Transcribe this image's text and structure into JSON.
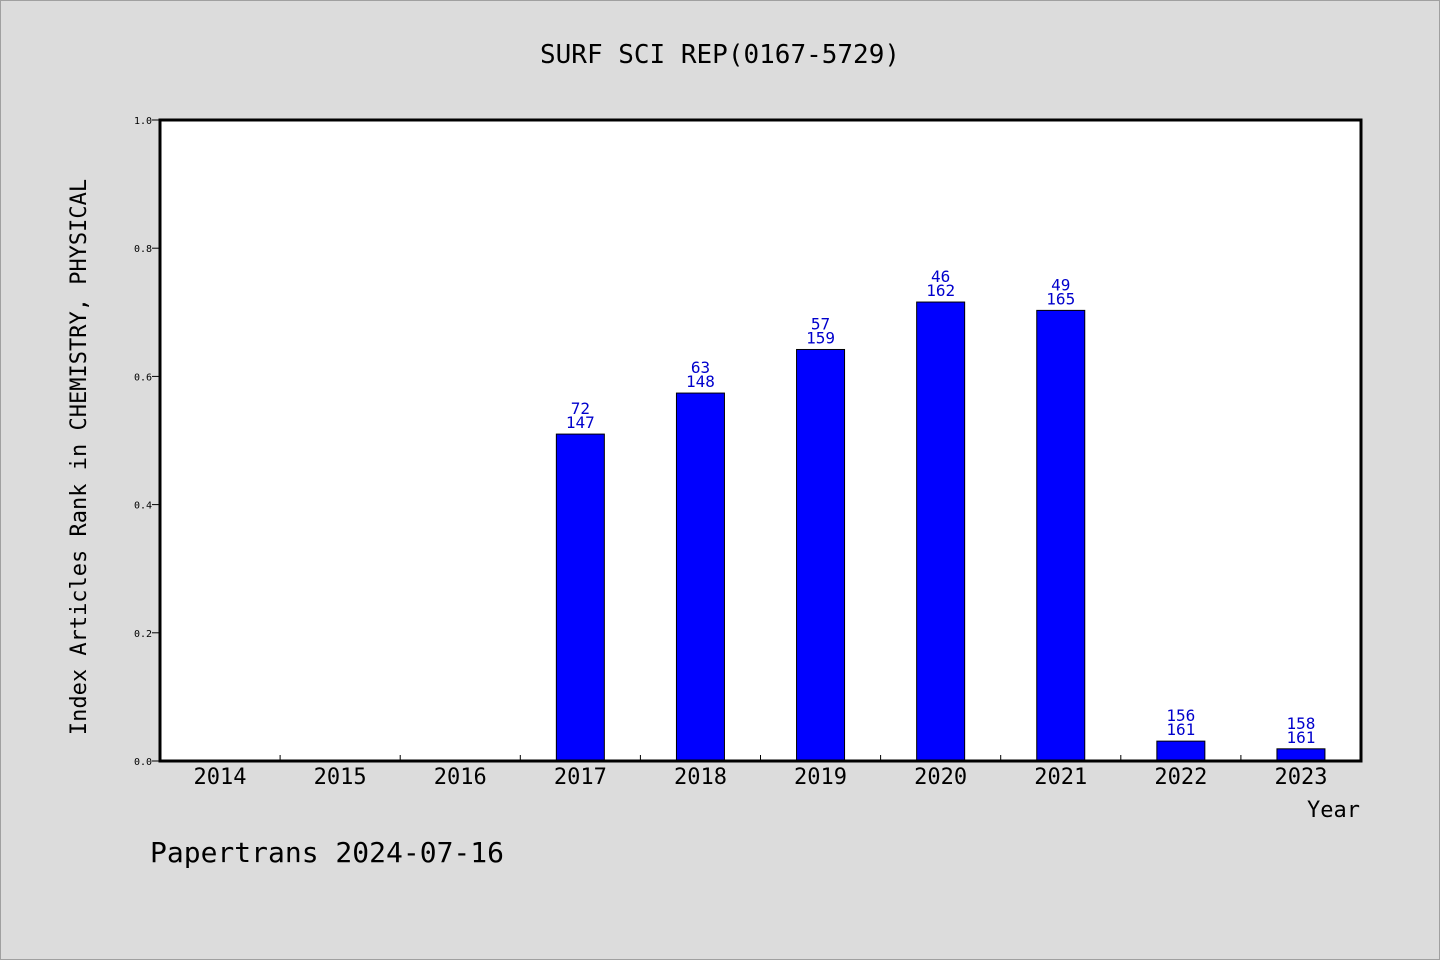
{
  "footer": "Papertrans 2024-07-16",
  "colors": {
    "background": "#dcdcdc",
    "plot_background": "#ffffff",
    "bar": "#0000ff",
    "label": "#0000cc",
    "axis": "#000000"
  },
  "chart_data": {
    "type": "bar",
    "title": "SURF SCI REP(0167-5729)",
    "xlabel": "Year",
    "ylabel": "Index Articles Rank in CHEMISTRY, PHYSICAL",
    "ylim": [
      0,
      1.0
    ],
    "yticks": [
      "0.0",
      "0.2",
      "0.4",
      "0.6",
      "0.8",
      "1.0"
    ],
    "categories": [
      "2014",
      "2015",
      "2016",
      "2017",
      "2018",
      "2019",
      "2020",
      "2021",
      "2022",
      "2023"
    ],
    "values": [
      null,
      null,
      null,
      0.51,
      0.574,
      0.642,
      0.716,
      0.703,
      0.031,
      0.019
    ],
    "rank_labels": [
      null,
      null,
      null,
      "72",
      "63",
      "57",
      "46",
      "49",
      "156",
      "158"
    ],
    "total_labels": [
      null,
      null,
      null,
      "147",
      "148",
      "159",
      "162",
      "165",
      "161",
      "161"
    ],
    "grid": false,
    "legend": "none"
  }
}
